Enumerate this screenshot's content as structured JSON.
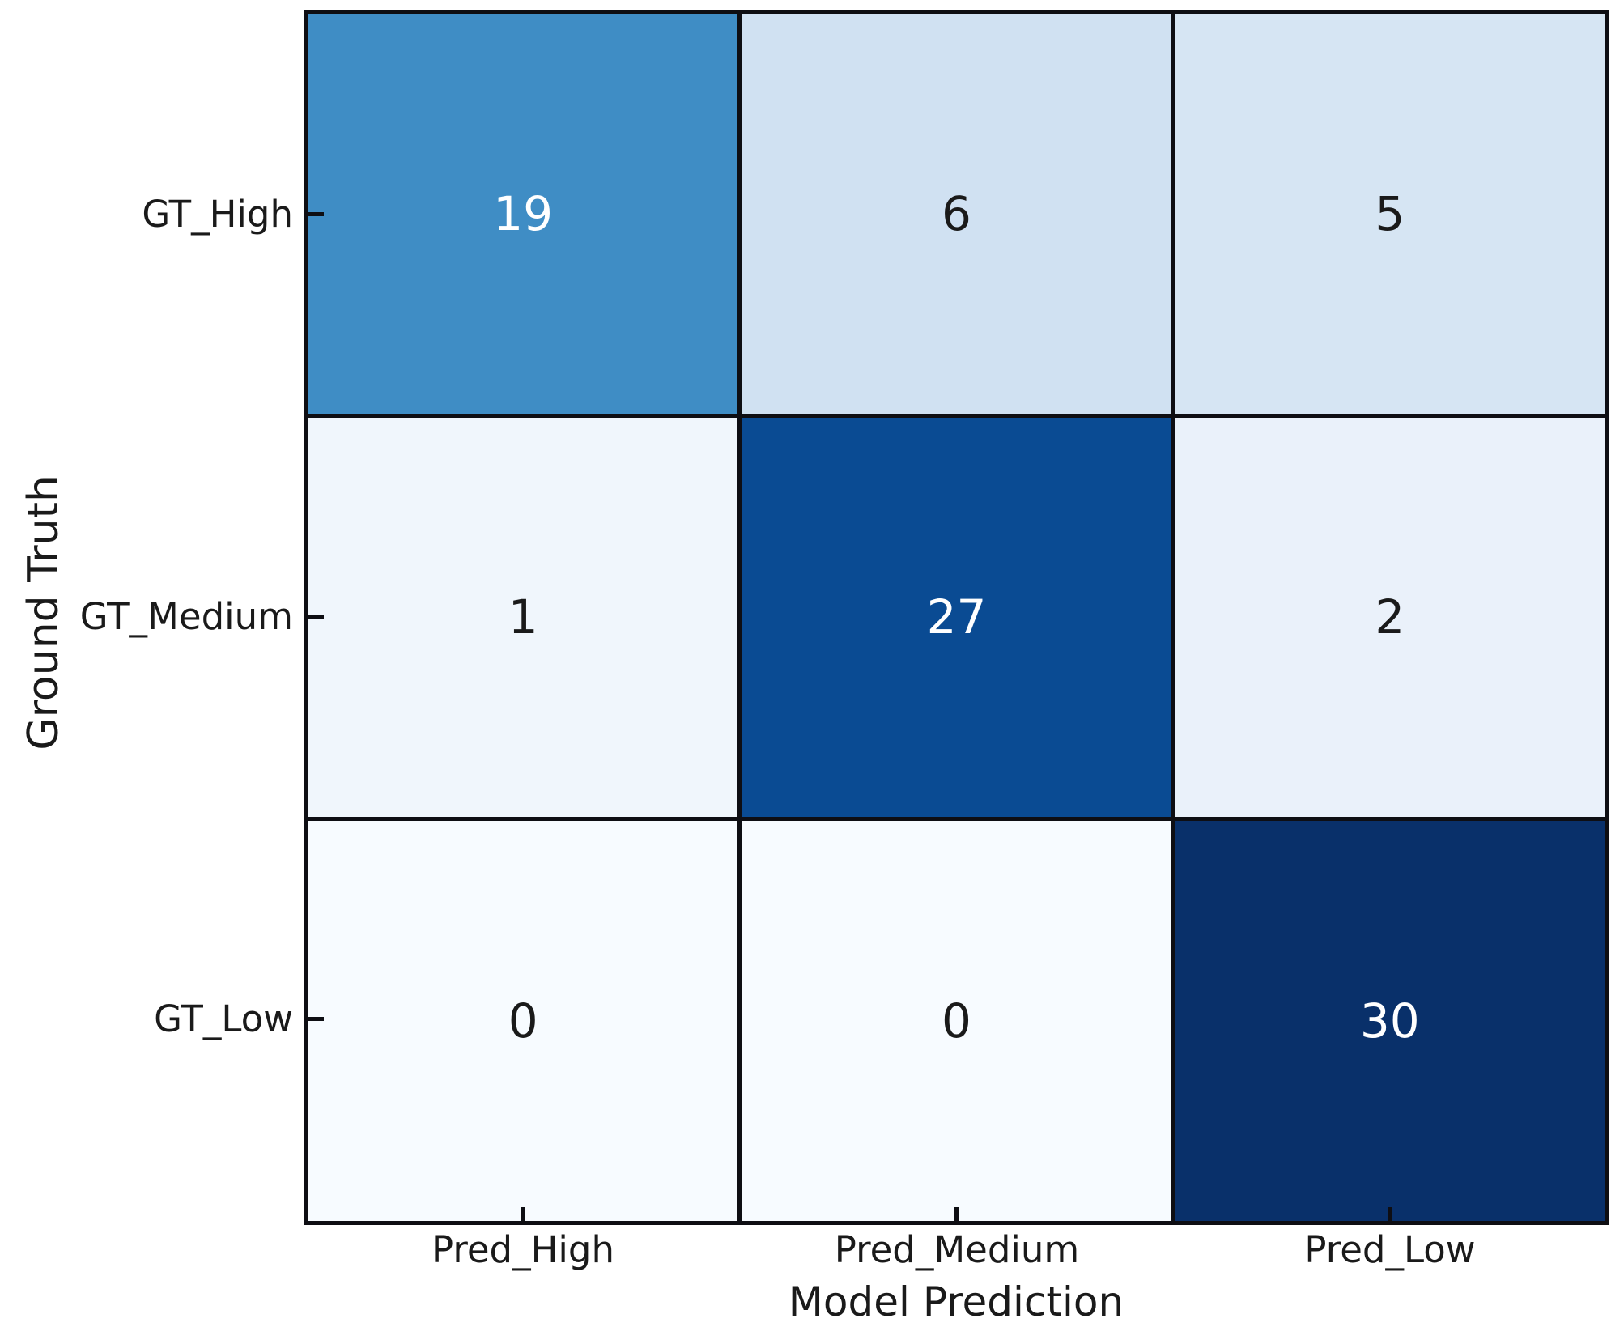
{
  "chart_data": {
    "type": "heatmap",
    "title": "",
    "xlabel": "Model Prediction",
    "ylabel": "Ground Truth",
    "x_categories": [
      "Pred_High",
      "Pred_Medium",
      "Pred_Low"
    ],
    "y_categories": [
      "GT_High",
      "GT_Medium",
      "GT_Low"
    ],
    "values": [
      [
        19,
        6,
        5
      ],
      [
        1,
        27,
        2
      ],
      [
        0,
        0,
        30
      ]
    ],
    "cell_colors": [
      [
        "#3f8dc5",
        "#d0e1f2",
        "#d6e5f3"
      ],
      [
        "#f0f6fc",
        "#0a4b93",
        "#eaf1fa"
      ],
      [
        "#f7fbff",
        "#f7fbff",
        "#09306a"
      ]
    ],
    "annotation_colors": [
      [
        "#ffffff",
        "#1a1a1a",
        "#1a1a1a"
      ],
      [
        "#1a1a1a",
        "#ffffff",
        "#1a1a1a"
      ],
      [
        "#1a1a1a",
        "#1a1a1a",
        "#ffffff"
      ]
    ],
    "colormap": "Blues",
    "grid_line_color": "#0e0e13",
    "axis_text_color": "#1a1a1a",
    "legend": "none",
    "grid": "off"
  }
}
